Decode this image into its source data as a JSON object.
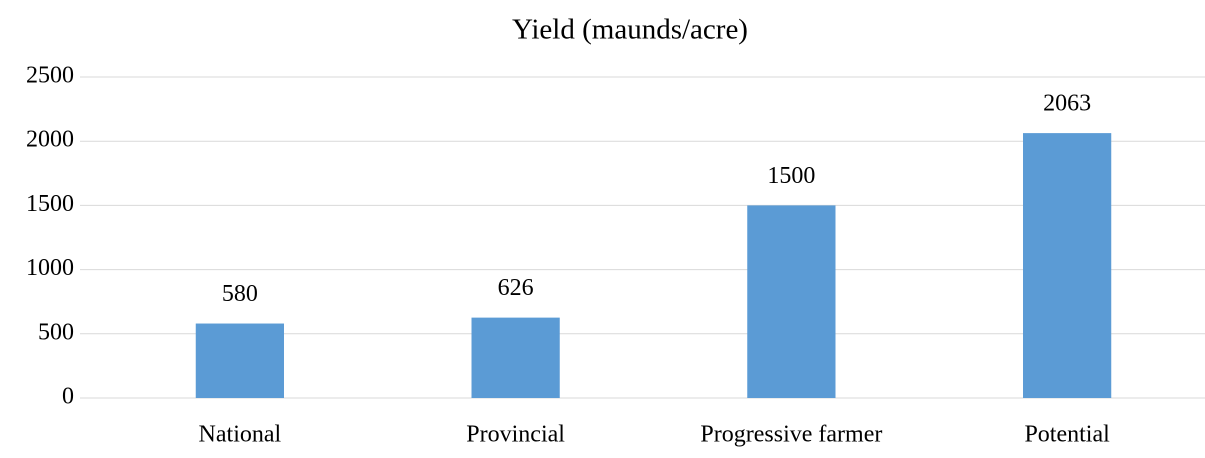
{
  "chart_data": {
    "type": "bar",
    "title": "Yield (maunds/acre)",
    "categories": [
      "National",
      "Provincial",
      "Progressive farmer",
      "Potential"
    ],
    "values": [
      580,
      626,
      1500,
      2063
    ],
    "color": "#5b9bd5",
    "ylim": [
      0,
      2500
    ],
    "yticks": [
      0,
      500,
      1000,
      1500,
      2000,
      2500
    ],
    "grid": true
  }
}
